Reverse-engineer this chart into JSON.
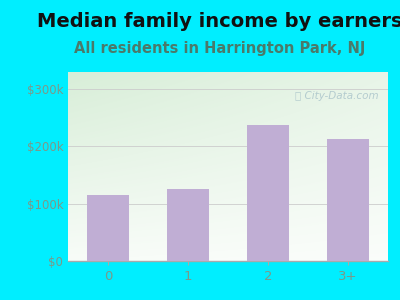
{
  "title": "Median family income by earners",
  "subtitle": "All residents in Harrington Park, NJ",
  "categories": [
    "0",
    "1",
    "2",
    "3+"
  ],
  "values": [
    115000,
    125000,
    238000,
    213000
  ],
  "bar_color": "#c0aed4",
  "title_fontsize": 14,
  "subtitle_fontsize": 10.5,
  "title_color": "#111111",
  "subtitle_color": "#4a7a6a",
  "tick_color": "#7a9a8a",
  "ylim": [
    0,
    330000
  ],
  "yticks": [
    0,
    100000,
    200000,
    300000
  ],
  "ytick_labels": [
    "$0",
    "$100k",
    "$200k",
    "$300k"
  ],
  "background_outer": "#00eeff",
  "watermark": "Ⓜ City-Data.com"
}
